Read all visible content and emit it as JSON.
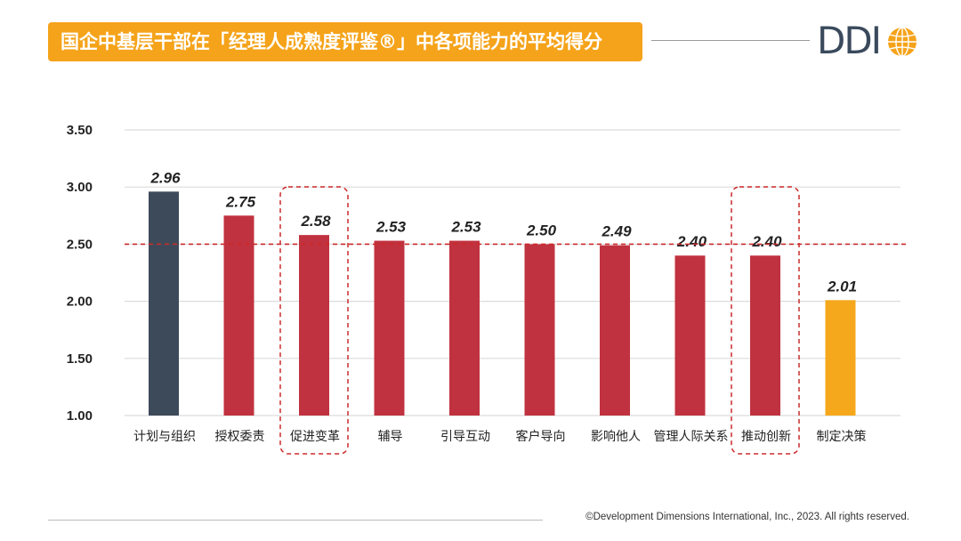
{
  "title": "国企中基层干部在「经理人成熟度评鉴®」中各项能力的平均得分",
  "logo": {
    "text": "DDI"
  },
  "footer": "©Development Dimensions International, Inc., 2023. All rights reserved.",
  "colors": {
    "banner": "#f5a31a",
    "bar_default": "#c0323f",
    "bar_first": "#3d4a5a",
    "bar_last": "#f5a81c",
    "highlight": "#cc2a2a"
  },
  "chart_data": {
    "type": "bar",
    "categories": [
      "计划与组织",
      "授权委责",
      "促进变革",
      "辅导",
      "引导互动",
      "客户导向",
      "影响他人",
      "管理人际关系",
      "推动创新",
      "制定决策"
    ],
    "values": [
      2.96,
      2.75,
      2.58,
      2.53,
      2.53,
      2.5,
      2.49,
      2.4,
      2.4,
      2.01
    ],
    "value_labels": [
      "2.96",
      "2.75",
      "2.58",
      "2.53",
      "2.53",
      "2.50",
      "2.49",
      "2.40",
      "2.40",
      "2.01"
    ],
    "y_ticks": [
      "1.00",
      "1.50",
      "2.00",
      "2.50",
      "3.00",
      "3.50"
    ],
    "ylim": [
      1.0,
      3.5
    ],
    "reference_line": 2.5,
    "highlighted_categories": [
      "促进变革",
      "推动创新"
    ],
    "grid": true
  }
}
